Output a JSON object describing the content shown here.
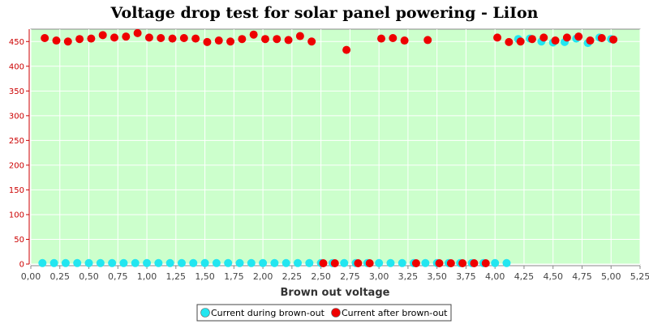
{
  "chart_data": {
    "type": "scatter",
    "title": "Voltage drop test for solar panel powering -  LiIon",
    "xlabel": "Brown out voltage",
    "ylabel": "",
    "xlim": [
      0,
      5.25
    ],
    "ylim": [
      0,
      475
    ],
    "x_ticks": [
      "0,00",
      "0,25",
      "0,50",
      "0,75",
      "1,00",
      "1,25",
      "1,50",
      "1,75",
      "2,00",
      "2,25",
      "2,50",
      "2,75",
      "3,00",
      "3,25",
      "3,50",
      "3,75",
      "4,00",
      "4,25",
      "4,50",
      "4,75",
      "5,00",
      "5,25"
    ],
    "y_ticks": [
      "0",
      "50",
      "100",
      "150",
      "200",
      "250",
      "300",
      "350",
      "400",
      "450"
    ],
    "grid": true,
    "legend_position": "bottom",
    "background_color": "#ccffcc",
    "series": [
      {
        "name": "Current during brown-out",
        "color": "#22e6f0",
        "points": [
          [
            0.1,
            2
          ],
          [
            0.2,
            2
          ],
          [
            0.3,
            2
          ],
          [
            0.4,
            2
          ],
          [
            0.5,
            2
          ],
          [
            0.6,
            2
          ],
          [
            0.7,
            2
          ],
          [
            0.8,
            2
          ],
          [
            0.9,
            2
          ],
          [
            1.0,
            2
          ],
          [
            1.1,
            2
          ],
          [
            1.2,
            2
          ],
          [
            1.3,
            2
          ],
          [
            1.4,
            2
          ],
          [
            1.5,
            2
          ],
          [
            1.6,
            2
          ],
          [
            1.7,
            2
          ],
          [
            1.8,
            2
          ],
          [
            1.9,
            2
          ],
          [
            2.0,
            2
          ],
          [
            2.1,
            2
          ],
          [
            2.2,
            2
          ],
          [
            2.3,
            2
          ],
          [
            2.4,
            2
          ],
          [
            2.5,
            2
          ],
          [
            2.6,
            2
          ],
          [
            2.7,
            2
          ],
          [
            2.8,
            2
          ],
          [
            2.9,
            2
          ],
          [
            3.0,
            2
          ],
          [
            3.1,
            2
          ],
          [
            3.2,
            2
          ],
          [
            3.3,
            2
          ],
          [
            3.4,
            2
          ],
          [
            3.5,
            2
          ],
          [
            3.6,
            2
          ],
          [
            3.7,
            2
          ],
          [
            3.8,
            2
          ],
          [
            3.9,
            2
          ],
          [
            4.0,
            2
          ],
          [
            4.1,
            2
          ],
          [
            4.2,
            455
          ],
          [
            4.3,
            456
          ],
          [
            4.4,
            450
          ],
          [
            4.5,
            448
          ],
          [
            4.6,
            449
          ],
          [
            4.7,
            456
          ],
          [
            4.8,
            447
          ],
          [
            4.9,
            458
          ],
          [
            5.0,
            455
          ]
        ]
      },
      {
        "name": "Current after brown-out",
        "color": "#ee0000",
        "points": [
          [
            0.12,
            457
          ],
          [
            0.22,
            452
          ],
          [
            0.32,
            450
          ],
          [
            0.42,
            455
          ],
          [
            0.52,
            456
          ],
          [
            0.62,
            463
          ],
          [
            0.72,
            458
          ],
          [
            0.82,
            460
          ],
          [
            0.92,
            467
          ],
          [
            1.02,
            458
          ],
          [
            1.12,
            457
          ],
          [
            1.22,
            456
          ],
          [
            1.32,
            457
          ],
          [
            1.42,
            456
          ],
          [
            1.52,
            449
          ],
          [
            1.62,
            452
          ],
          [
            1.72,
            450
          ],
          [
            1.82,
            455
          ],
          [
            1.92,
            464
          ],
          [
            2.02,
            455
          ],
          [
            2.12,
            455
          ],
          [
            2.22,
            453
          ],
          [
            2.32,
            461
          ],
          [
            2.42,
            450
          ],
          [
            2.72,
            433
          ],
          [
            3.02,
            456
          ],
          [
            3.12,
            457
          ],
          [
            3.22,
            452
          ],
          [
            3.42,
            453
          ],
          [
            4.02,
            458
          ],
          [
            4.12,
            449
          ],
          [
            4.22,
            450
          ],
          [
            4.32,
            455
          ],
          [
            4.42,
            458
          ],
          [
            4.52,
            452
          ],
          [
            4.62,
            458
          ],
          [
            4.72,
            460
          ],
          [
            4.82,
            452
          ],
          [
            4.92,
            457
          ],
          [
            5.02,
            454
          ],
          [
            2.52,
            1
          ],
          [
            2.62,
            1
          ],
          [
            2.82,
            1
          ],
          [
            2.92,
            1
          ],
          [
            3.32,
            1
          ],
          [
            3.52,
            1
          ],
          [
            3.62,
            1
          ],
          [
            3.72,
            1
          ],
          [
            3.82,
            1
          ],
          [
            3.92,
            1
          ]
        ]
      }
    ]
  }
}
